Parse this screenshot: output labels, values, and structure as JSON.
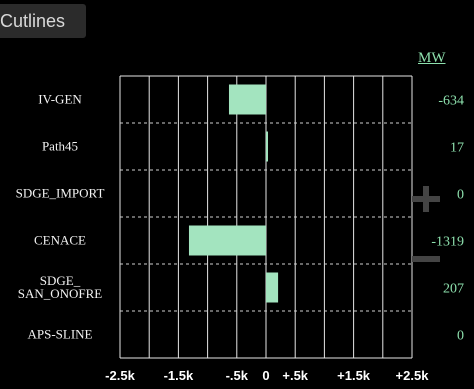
{
  "header": {
    "tab_label": "Cutlines"
  },
  "chart_data": {
    "type": "bar",
    "orientation": "horizontal",
    "unit_label": "MW",
    "categories": [
      "IV-GEN",
      "Path45",
      "SDGE_IMPORT",
      "CENACE",
      "SDGE_ SAN_ONOFRE",
      "APS-SLINE"
    ],
    "category_lines": [
      [
        "IV-GEN"
      ],
      [
        "Path45"
      ],
      [
        "SDGE_IMPORT"
      ],
      [
        "CENACE"
      ],
      [
        "SDGE_",
        "SAN_ONOFRE"
      ],
      [
        "APS-SLINE"
      ]
    ],
    "values": [
      -634,
      17,
      0,
      -1319,
      207,
      0
    ],
    "value_labels": [
      "-634",
      "17",
      "0",
      "-1319",
      "207",
      "0"
    ],
    "xlim": [
      -2500,
      2500
    ],
    "xticks": [
      -2500,
      -1500,
      -500,
      0,
      500,
      1500,
      2500
    ],
    "xtick_labels": [
      "-2.5k",
      "-1.5k",
      "-.5k",
      "0",
      "+.5k",
      "+1.5k",
      "+2.5k"
    ],
    "gridlines": [
      -2500,
      -2000,
      -1500,
      -1000,
      -500,
      0,
      500,
      1000,
      1500,
      2000,
      2500
    ],
    "grid": true,
    "bar_color": "#a3e4bf",
    "value_color": "#8de0ad"
  },
  "controls": {
    "zoom_in_icon": "plus-icon",
    "zoom_out_icon": "minus-icon"
  }
}
